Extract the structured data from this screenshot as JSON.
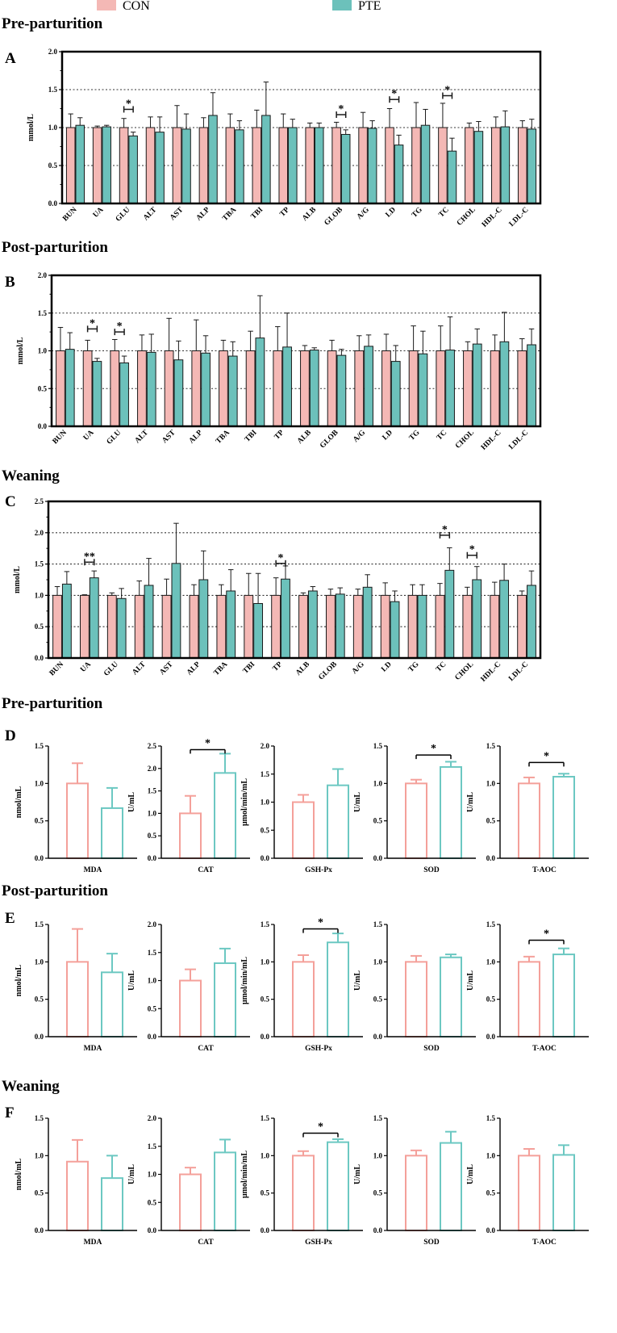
{
  "colors": {
    "con": "#f4b8b5",
    "pte": "#6cc1bb",
    "con_outline": "#f4a09a",
    "pte_outline": "#6cc8c2",
    "stroke": "#1a1a1a"
  },
  "legend": {
    "con": "CON",
    "pte": "PTE"
  },
  "sections": {
    "pre": "Pre-parturition",
    "post": "Post-parturition",
    "wean": "Weaning",
    "pre2": "Pre-parturition",
    "post2": "Post-parturition",
    "wean2": "Weaning"
  },
  "chart_data": [
    {
      "id": "A",
      "type": "bar",
      "panel": "A",
      "period": "Pre-parturition",
      "ylabel": "mmol/L",
      "ylim": [
        0,
        2.0
      ],
      "yticks": [
        "0.0",
        "0.5",
        "1.0",
        "1.5",
        "2.0"
      ],
      "gridlines": [
        0.5,
        1.0,
        1.5
      ],
      "categories": [
        "BUN",
        "UA",
        "GLU",
        "ALT",
        "AST",
        "ALP",
        "TBA",
        "TBI",
        "TP",
        "ALB",
        "GLOB",
        "A/G",
        "LD",
        "TG",
        "TC",
        "CHOL",
        "HDL-C",
        "LDL-C"
      ],
      "series": [
        {
          "name": "CON",
          "values": [
            1.0,
            1.0,
            1.0,
            1.0,
            1.0,
            1.0,
            1.0,
            1.0,
            1.0,
            1.0,
            1.0,
            1.0,
            1.0,
            1.0,
            1.0,
            1.0,
            1.0,
            1.0
          ],
          "errors": [
            0.18,
            0.02,
            0.12,
            0.14,
            0.29,
            0.13,
            0.18,
            0.23,
            0.18,
            0.06,
            0.07,
            0.2,
            0.25,
            0.33,
            0.32,
            0.06,
            0.14,
            0.09
          ]
        },
        {
          "name": "PTE",
          "values": [
            1.03,
            1.01,
            0.89,
            0.94,
            0.98,
            1.16,
            0.97,
            1.16,
            1.0,
            1.0,
            0.91,
            0.99,
            0.77,
            1.03,
            0.69,
            0.95,
            1.01,
            0.98
          ],
          "errors": [
            0.1,
            0.02,
            0.05,
            0.2,
            0.2,
            0.3,
            0.12,
            0.44,
            0.11,
            0.06,
            0.06,
            0.1,
            0.13,
            0.21,
            0.17,
            0.13,
            0.21,
            0.13
          ]
        }
      ],
      "significance": [
        {
          "index": 2,
          "label": "*",
          "y": 1.24
        },
        {
          "index": 10,
          "label": "*",
          "y": 1.17
        },
        {
          "index": 12,
          "label": "*",
          "y": 1.37
        },
        {
          "index": 14,
          "label": "*",
          "y": 1.42
        }
      ]
    },
    {
      "id": "B",
      "type": "bar",
      "panel": "B",
      "period": "Post-parturition",
      "ylabel": "mmol/L",
      "ylim": [
        0,
        2.0
      ],
      "yticks": [
        "0.0",
        "0.5",
        "1.0",
        "1.5",
        "2.0"
      ],
      "gridlines": [
        0.5,
        1.0,
        1.5
      ],
      "categories": [
        "BUN",
        "UA",
        "GLU",
        "ALT",
        "AST",
        "ALP",
        "TBA",
        "TBI",
        "TP",
        "ALB",
        "GLOB",
        "A/G",
        "LD",
        "TG",
        "TC",
        "CHOL",
        "HDL-C",
        "LDL-C"
      ],
      "series": [
        {
          "name": "CON",
          "values": [
            1.0,
            1.0,
            1.0,
            1.0,
            1.0,
            1.0,
            1.0,
            1.0,
            1.0,
            1.0,
            1.0,
            1.0,
            1.0,
            1.0,
            1.0,
            1.0,
            1.0,
            1.0
          ],
          "errors": [
            0.31,
            0.14,
            0.15,
            0.21,
            0.43,
            0.41,
            0.14,
            0.26,
            0.32,
            0.07,
            0.14,
            0.2,
            0.22,
            0.33,
            0.33,
            0.12,
            0.21,
            0.16
          ]
        },
        {
          "name": "PTE",
          "values": [
            1.02,
            0.86,
            0.84,
            0.98,
            0.88,
            0.97,
            0.93,
            1.17,
            1.05,
            1.01,
            0.94,
            1.06,
            0.86,
            0.96,
            1.01,
            1.09,
            1.12,
            1.08
          ],
          "errors": [
            0.22,
            0.04,
            0.09,
            0.24,
            0.25,
            0.23,
            0.19,
            0.56,
            0.45,
            0.03,
            0.08,
            0.15,
            0.21,
            0.3,
            0.44,
            0.2,
            0.39,
            0.21
          ]
        }
      ],
      "significance": [
        {
          "index": 1,
          "label": "*",
          "y": 1.29
        },
        {
          "index": 2,
          "label": "*",
          "y": 1.25
        }
      ]
    },
    {
      "id": "C",
      "type": "bar",
      "panel": "C",
      "period": "Weaning",
      "ylabel": "mmol/L",
      "ylim": [
        0,
        2.5
      ],
      "yticks": [
        "0.0",
        "0.5",
        "1.0",
        "1.5",
        "2.0",
        "2.5"
      ],
      "gridlines": [
        0.5,
        1.0,
        1.5,
        2.0
      ],
      "categories": [
        "BUN",
        "UA",
        "GLU",
        "ALT",
        "AST",
        "ALP",
        "TBA",
        "TBI",
        "TP",
        "ALB",
        "GLOB",
        "A/G",
        "LD",
        "TG",
        "TC",
        "CHOL",
        "HDL-C",
        "LDL-C"
      ],
      "series": [
        {
          "name": "CON",
          "values": [
            1.0,
            1.0,
            1.0,
            1.0,
            1.0,
            1.0,
            1.0,
            1.0,
            1.0,
            1.0,
            1.0,
            1.0,
            1.0,
            1.0,
            1.0,
            1.0,
            1.0,
            1.0
          ],
          "errors": [
            0.14,
            0.01,
            0.04,
            0.23,
            0.26,
            0.17,
            0.17,
            0.35,
            0.28,
            0.04,
            0.1,
            0.1,
            0.2,
            0.17,
            0.19,
            0.13,
            0.21,
            0.07
          ]
        },
        {
          "name": "PTE",
          "values": [
            1.18,
            1.28,
            0.95,
            1.16,
            1.51,
            1.25,
            1.07,
            0.87,
            1.26,
            1.07,
            1.02,
            1.13,
            0.9,
            1.0,
            1.4,
            1.25,
            1.24,
            1.16
          ],
          "errors": [
            0.2,
            0.11,
            0.16,
            0.43,
            0.64,
            0.46,
            0.34,
            0.48,
            0.21,
            0.07,
            0.1,
            0.2,
            0.17,
            0.17,
            0.36,
            0.21,
            0.26,
            0.23
          ]
        }
      ],
      "significance": [
        {
          "index": 1,
          "label": "**",
          "y": 1.53
        },
        {
          "index": 8,
          "label": "*",
          "y": 1.51
        },
        {
          "index": 14,
          "label": "*",
          "y": 1.96
        },
        {
          "index": 15,
          "label": "*",
          "y": 1.64
        }
      ]
    },
    {
      "id": "D1",
      "type": "bar",
      "panel": "D",
      "period": "Pre-parturition",
      "ylabel": "nmol/mL",
      "ylim": [
        0,
        1.5
      ],
      "yticks": [
        "0.0",
        "0.5",
        "1.0",
        "1.5"
      ],
      "categories": [
        "MDA"
      ],
      "series": [
        {
          "name": "CON",
          "values": [
            1.0
          ],
          "errors": [
            0.27
          ]
        },
        {
          "name": "PTE",
          "values": [
            0.67
          ],
          "errors": [
            0.27
          ]
        }
      ],
      "significance": []
    },
    {
      "id": "D2",
      "type": "bar",
      "panel": "D",
      "period": "Pre-parturition",
      "ylabel": "U/mL",
      "ylim": [
        0,
        2.5
      ],
      "yticks": [
        "0.0",
        "0.5",
        "1.0",
        "1.5",
        "2.0",
        "2.5"
      ],
      "categories": [
        "CAT"
      ],
      "series": [
        {
          "name": "CON",
          "values": [
            1.0
          ],
          "errors": [
            0.39
          ]
        },
        {
          "name": "PTE",
          "values": [
            1.9
          ],
          "errors": [
            0.43
          ]
        }
      ],
      "significance": [
        {
          "label": "*",
          "y": 2.42
        }
      ]
    },
    {
      "id": "D3",
      "type": "bar",
      "panel": "D",
      "period": "Pre-parturition",
      "ylabel": "μmol/min/mL",
      "ylim": [
        0,
        2.0
      ],
      "yticks": [
        "0.0",
        "0.5",
        "1.0",
        "1.5",
        "2.0"
      ],
      "categories": [
        "GSH-Px"
      ],
      "series": [
        {
          "name": "CON",
          "values": [
            1.0
          ],
          "errors": [
            0.13
          ]
        },
        {
          "name": "PTE",
          "values": [
            1.3
          ],
          "errors": [
            0.29
          ]
        }
      ],
      "significance": []
    },
    {
      "id": "D4",
      "type": "bar",
      "panel": "D",
      "period": "Pre-parturition",
      "ylabel": "U/mL",
      "ylim": [
        0,
        1.5
      ],
      "yticks": [
        "0.0",
        "0.5",
        "1.0",
        "1.5"
      ],
      "categories": [
        "SOD"
      ],
      "series": [
        {
          "name": "CON",
          "values": [
            1.0
          ],
          "errors": [
            0.05
          ]
        },
        {
          "name": "PTE",
          "values": [
            1.22
          ],
          "errors": [
            0.07
          ]
        }
      ],
      "significance": [
        {
          "label": "*",
          "y": 1.38
        }
      ]
    },
    {
      "id": "D5",
      "type": "bar",
      "panel": "D",
      "period": "Pre-parturition",
      "ylabel": "U/mL",
      "ylim": [
        0,
        1.5
      ],
      "yticks": [
        "0.0",
        "0.5",
        "1.0",
        "1.5"
      ],
      "categories": [
        "T-AOC"
      ],
      "series": [
        {
          "name": "CON",
          "values": [
            1.0
          ],
          "errors": [
            0.08
          ]
        },
        {
          "name": "PTE",
          "values": [
            1.09
          ],
          "errors": [
            0.04
          ]
        }
      ],
      "significance": [
        {
          "label": "*",
          "y": 1.28
        }
      ]
    },
    {
      "id": "E1",
      "type": "bar",
      "panel": "E",
      "period": "Post-parturition",
      "ylabel": "nmol/mL",
      "ylim": [
        0,
        1.5
      ],
      "yticks": [
        "0.0",
        "0.5",
        "1.0",
        "1.5"
      ],
      "categories": [
        "MDA"
      ],
      "series": [
        {
          "name": "CON",
          "values": [
            1.0
          ],
          "errors": [
            0.44
          ]
        },
        {
          "name": "PTE",
          "values": [
            0.86
          ],
          "errors": [
            0.25
          ]
        }
      ],
      "significance": []
    },
    {
      "id": "E2",
      "type": "bar",
      "panel": "E",
      "period": "Post-parturition",
      "ylabel": "U/mL",
      "ylim": [
        0,
        2.0
      ],
      "yticks": [
        "0.0",
        "0.5",
        "1.0",
        "1.5",
        "2.0"
      ],
      "categories": [
        "CAT"
      ],
      "series": [
        {
          "name": "CON",
          "values": [
            1.0
          ],
          "errors": [
            0.2
          ]
        },
        {
          "name": "PTE",
          "values": [
            1.31
          ],
          "errors": [
            0.26
          ]
        }
      ],
      "significance": []
    },
    {
      "id": "E3",
      "type": "bar",
      "panel": "E",
      "period": "Post-parturition",
      "ylabel": "μmol/min/mL",
      "ylim": [
        0,
        1.5
      ],
      "yticks": [
        "0.0",
        "0.5",
        "1.0",
        "1.5"
      ],
      "categories": [
        "GSH-Px"
      ],
      "series": [
        {
          "name": "CON",
          "values": [
            1.0
          ],
          "errors": [
            0.09
          ]
        },
        {
          "name": "PTE",
          "values": [
            1.26
          ],
          "errors": [
            0.12
          ]
        }
      ],
      "significance": [
        {
          "label": "*",
          "y": 1.44
        }
      ]
    },
    {
      "id": "E4",
      "type": "bar",
      "panel": "E",
      "period": "Post-parturition",
      "ylabel": "U/mL",
      "ylim": [
        0,
        1.5
      ],
      "yticks": [
        "0.0",
        "0.5",
        "1.0",
        "1.5"
      ],
      "categories": [
        "SOD"
      ],
      "series": [
        {
          "name": "CON",
          "values": [
            1.0
          ],
          "errors": [
            0.08
          ]
        },
        {
          "name": "PTE",
          "values": [
            1.06
          ],
          "errors": [
            0.04
          ]
        }
      ],
      "significance": []
    },
    {
      "id": "E5",
      "type": "bar",
      "panel": "E",
      "period": "Post-parturition",
      "ylabel": "U/mL",
      "ylim": [
        0,
        1.5
      ],
      "yticks": [
        "0.0",
        "0.5",
        "1.0",
        "1.5"
      ],
      "categories": [
        "T-AOC"
      ],
      "series": [
        {
          "name": "CON",
          "values": [
            1.0
          ],
          "errors": [
            0.07
          ]
        },
        {
          "name": "PTE",
          "values": [
            1.1
          ],
          "errors": [
            0.08
          ]
        }
      ],
      "significance": [
        {
          "label": "*",
          "y": 1.29
        }
      ]
    },
    {
      "id": "F1",
      "type": "bar",
      "panel": "F",
      "period": "Weaning",
      "ylabel": "nmol/mL",
      "ylim": [
        0,
        1.5
      ],
      "yticks": [
        "0.0",
        "0.5",
        "1.0",
        "1.5"
      ],
      "categories": [
        "MDA"
      ],
      "series": [
        {
          "name": "CON",
          "values": [
            0.92
          ],
          "errors": [
            0.29
          ]
        },
        {
          "name": "PTE",
          "values": [
            0.7
          ],
          "errors": [
            0.3
          ]
        }
      ],
      "significance": []
    },
    {
      "id": "F2",
      "type": "bar",
      "panel": "F",
      "period": "Weaning",
      "ylabel": "U/mL",
      "ylim": [
        0,
        2.0
      ],
      "yticks": [
        "0.0",
        "0.5",
        "1.0",
        "1.5",
        "2.0"
      ],
      "categories": [
        "CAT"
      ],
      "series": [
        {
          "name": "CON",
          "values": [
            1.0
          ],
          "errors": [
            0.12
          ]
        },
        {
          "name": "PTE",
          "values": [
            1.39
          ],
          "errors": [
            0.23
          ]
        }
      ],
      "significance": []
    },
    {
      "id": "F3",
      "type": "bar",
      "panel": "F",
      "period": "Weaning",
      "ylabel": "μmol/min/mL",
      "ylim": [
        0,
        1.5
      ],
      "yticks": [
        "0.0",
        "0.5",
        "1.0",
        "1.5"
      ],
      "categories": [
        "GSH-Px"
      ],
      "series": [
        {
          "name": "CON",
          "values": [
            1.0
          ],
          "errors": [
            0.06
          ]
        },
        {
          "name": "PTE",
          "values": [
            1.18
          ],
          "errors": [
            0.04
          ]
        }
      ],
      "significance": [
        {
          "label": "*",
          "y": 1.3
        }
      ]
    },
    {
      "id": "F4",
      "type": "bar",
      "panel": "F",
      "period": "Weaning",
      "ylabel": "U/mL",
      "ylim": [
        0,
        1.5
      ],
      "yticks": [
        "0.0",
        "0.5",
        "1.0",
        "1.5"
      ],
      "categories": [
        "SOD"
      ],
      "series": [
        {
          "name": "CON",
          "values": [
            1.0
          ],
          "errors": [
            0.07
          ]
        },
        {
          "name": "PTE",
          "values": [
            1.17
          ],
          "errors": [
            0.15
          ]
        }
      ],
      "significance": []
    },
    {
      "id": "F5",
      "type": "bar",
      "panel": "F",
      "period": "Weaning",
      "ylabel": "U/mL",
      "ylim": [
        0,
        1.5
      ],
      "yticks": [
        "0.0",
        "0.5",
        "1.0",
        "1.5"
      ],
      "categories": [
        "T-AOC"
      ],
      "series": [
        {
          "name": "CON",
          "values": [
            1.0
          ],
          "errors": [
            0.09
          ]
        },
        {
          "name": "PTE",
          "values": [
            1.01
          ],
          "errors": [
            0.13
          ]
        }
      ],
      "significance": []
    }
  ]
}
